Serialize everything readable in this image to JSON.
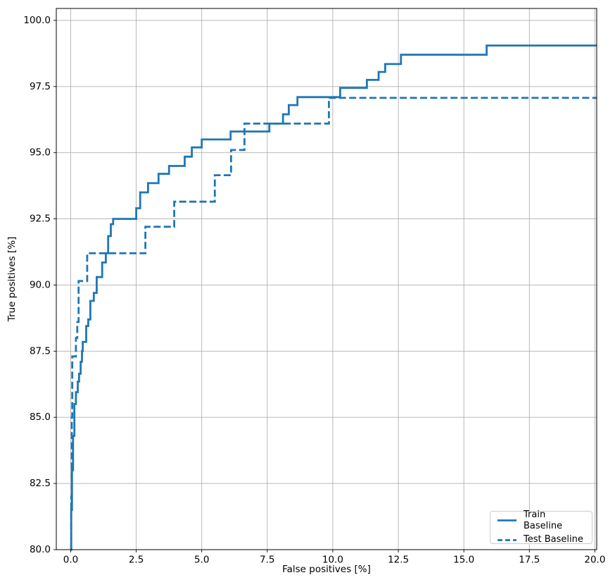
{
  "chart_data": {
    "type": "line",
    "title": "",
    "xlabel": "False positives [%]",
    "ylabel": "True positives [%]",
    "xlim": [
      -0.55,
      20.07
    ],
    "ylim": [
      80.0,
      100.45
    ],
    "grid": true,
    "legend_position": "lower right",
    "x_ticks": [
      0.0,
      2.5,
      5.0,
      7.5,
      10.0,
      12.5,
      15.0,
      17.5,
      20.0
    ],
    "x_tick_labels": [
      "0.0",
      "2.5",
      "5.0",
      "7.5",
      "10.0",
      "12.5",
      "15.0",
      "17.5",
      "20.0"
    ],
    "y_ticks": [
      80.0,
      82.5,
      85.0,
      87.5,
      90.0,
      92.5,
      95.0,
      97.5,
      100.0
    ],
    "y_tick_labels": [
      "80.0",
      "82.5",
      "85.0",
      "87.5",
      "90.0",
      "92.5",
      "95.0",
      "97.5",
      "100.0"
    ],
    "colors": {
      "line": "#1f77b4",
      "grid": "#b0b0b0",
      "axis": "#000000",
      "text": "#000000",
      "legend_border": "#cccccc",
      "background": "#ffffff"
    },
    "series": [
      {
        "name": "Train Baseline",
        "dash": "solid",
        "start": [
          0.0,
          80.0
        ],
        "steps": [
          [
            0.02,
            81.5
          ],
          [
            0.05,
            83.0
          ],
          [
            0.09,
            84.3
          ],
          [
            0.14,
            85.5
          ],
          [
            0.2,
            85.95
          ],
          [
            0.27,
            86.35
          ],
          [
            0.32,
            86.65
          ],
          [
            0.38,
            87.1
          ],
          [
            0.43,
            87.5
          ],
          [
            0.46,
            87.85
          ],
          [
            0.59,
            88.45
          ],
          [
            0.67,
            88.7
          ],
          [
            0.75,
            89.4
          ],
          [
            0.88,
            89.7
          ],
          [
            0.99,
            90.3
          ],
          [
            1.2,
            90.85
          ],
          [
            1.34,
            91.2
          ],
          [
            1.43,
            91.85
          ],
          [
            1.53,
            92.3
          ],
          [
            1.62,
            92.5
          ],
          [
            2.5,
            92.9
          ],
          [
            2.65,
            93.5
          ],
          [
            2.95,
            93.85
          ],
          [
            3.35,
            94.2
          ],
          [
            3.75,
            94.5
          ],
          [
            4.35,
            94.85
          ],
          [
            4.62,
            95.2
          ],
          [
            5.0,
            95.5
          ],
          [
            6.1,
            95.8
          ],
          [
            7.58,
            96.1
          ],
          [
            8.1,
            96.45
          ],
          [
            8.32,
            96.8
          ],
          [
            8.65,
            97.1
          ],
          [
            10.28,
            97.45
          ],
          [
            11.3,
            97.75
          ],
          [
            11.75,
            98.05
          ],
          [
            12.0,
            98.35
          ],
          [
            12.6,
            98.7
          ],
          [
            15.87,
            99.05
          ]
        ],
        "end_x": 20.07
      },
      {
        "name": "Test Baseline",
        "dash": "dashed",
        "start": [
          0.0,
          80.0
        ],
        "steps": [
          [
            0.02,
            82.0
          ],
          [
            0.04,
            85.0
          ],
          [
            0.06,
            87.3
          ],
          [
            0.2,
            88.0
          ],
          [
            0.25,
            88.6
          ],
          [
            0.3,
            90.15
          ],
          [
            0.63,
            91.2
          ],
          [
            2.85,
            92.2
          ],
          [
            3.95,
            93.15
          ],
          [
            5.5,
            94.15
          ],
          [
            6.12,
            95.1
          ],
          [
            6.63,
            96.1
          ],
          [
            9.85,
            97.07
          ]
        ],
        "end_x": 20.07
      }
    ]
  }
}
